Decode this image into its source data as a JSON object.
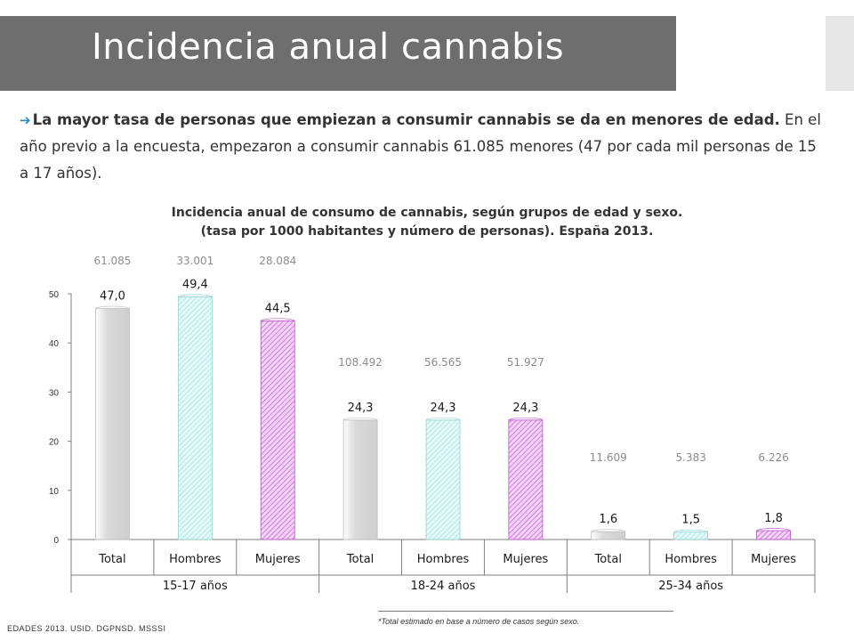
{
  "slide": {
    "title": "Incidencia anual cannabis",
    "intro_bold": "La mayor tasa de personas que empiezan a consumir cannabis se da en menores de edad.",
    "intro_rest": " En el año previo a la encuesta, empezaron a consumir cannabis 61.085 menores (47 por cada mil personas de 15 a 17 años).",
    "footnote": "*Total estimado en base a número de casos según sexo.",
    "source": "EDADES 2013. USID. DGPNSD. MSSSI"
  },
  "colors": {
    "title_band": "#6e6e6e",
    "total": "#d9d9d9",
    "hombres": "#9fe3e3",
    "mujeres": "#cc66dd",
    "bullet_arrow": "#2e89c8"
  },
  "chart_data": {
    "type": "bar",
    "title_line1": "Incidencia anual de consumo de cannabis, según grupos de edad y sexo.",
    "title_line2": "(tasa por 1000 habitantes y número de personas). España 2013.",
    "ylim": [
      0,
      50
    ],
    "yticks": [
      0,
      10,
      20,
      30,
      40,
      50
    ],
    "grid": false,
    "groups": [
      {
        "name": "15-17 años",
        "bars": [
          {
            "category": "Total",
            "value": 47.0,
            "label": "47,0",
            "count": "61.085"
          },
          {
            "category": "Hombres",
            "value": 49.4,
            "label": "49,4",
            "count": "33.001"
          },
          {
            "category": "Mujeres",
            "value": 44.5,
            "label": "44,5",
            "count": "28.084"
          }
        ]
      },
      {
        "name": "18-24 años",
        "bars": [
          {
            "category": "Total",
            "value": 24.3,
            "label": "24,3",
            "count": "108.492"
          },
          {
            "category": "Hombres",
            "value": 24.3,
            "label": "24,3",
            "count": "56.565"
          },
          {
            "category": "Mujeres",
            "value": 24.3,
            "label": "24,3",
            "count": "51.927"
          }
        ]
      },
      {
        "name": "25-34 años",
        "bars": [
          {
            "category": "Total",
            "value": 1.6,
            "label": "1,6",
            "count": "11.609"
          },
          {
            "category": "Hombres",
            "value": 1.5,
            "label": "1,5",
            "count": "5.383"
          },
          {
            "category": "Mujeres",
            "value": 1.8,
            "label": "1,8",
            "count": "6.226"
          }
        ]
      }
    ]
  }
}
